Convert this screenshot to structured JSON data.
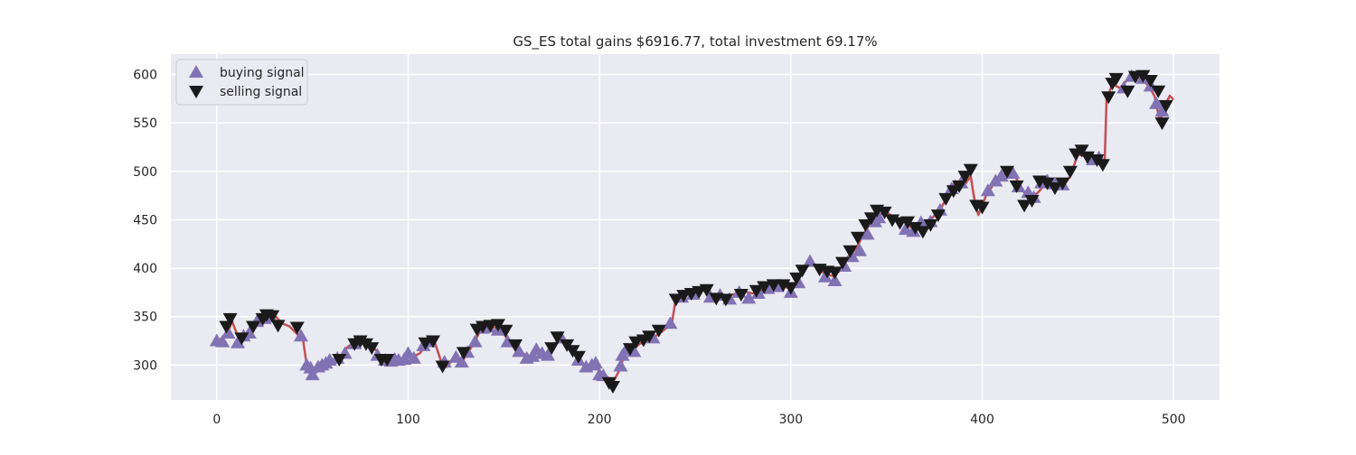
{
  "chart_data": {
    "type": "line",
    "title": "GS_ES total gains $6916.77, total investment 69.17%",
    "xlabel": "",
    "ylabel": "",
    "xlim": [
      -24,
      524
    ],
    "ylim": [
      264,
      621
    ],
    "x_ticks": [
      0,
      100,
      200,
      300,
      400,
      500
    ],
    "y_ticks": [
      300,
      350,
      400,
      450,
      500,
      550,
      600
    ],
    "grid": true,
    "legend_position": "upper-left",
    "legend": {
      "buy_label": "buying signal",
      "sell_label": "selling signal"
    },
    "colors": {
      "background": "#eaeaf2",
      "grid": "#ffffff",
      "line": "#c44e52",
      "buy": "#8172b3",
      "sell": "#1a1a1a"
    },
    "price_keypoints": [
      [
        0,
        325
      ],
      [
        5,
        330
      ],
      [
        8,
        345
      ],
      [
        12,
        325
      ],
      [
        15,
        330
      ],
      [
        18,
        335
      ],
      [
        22,
        345
      ],
      [
        26,
        350
      ],
      [
        30,
        352
      ],
      [
        34,
        343
      ],
      [
        38,
        340
      ],
      [
        42,
        332
      ],
      [
        45,
        327
      ],
      [
        47,
        300
      ],
      [
        52,
        296
      ],
      [
        56,
        300
      ],
      [
        60,
        304
      ],
      [
        65,
        308
      ],
      [
        68,
        318
      ],
      [
        72,
        324
      ],
      [
        78,
        324
      ],
      [
        82,
        318
      ],
      [
        87,
        307
      ],
      [
        92,
        305
      ],
      [
        97,
        306
      ],
      [
        102,
        308
      ],
      [
        106,
        312
      ],
      [
        110,
        322
      ],
      [
        114,
        323
      ],
      [
        117,
        305
      ],
      [
        120,
        298
      ],
      [
        124,
        307
      ],
      [
        128,
        303
      ],
      [
        131,
        312
      ],
      [
        135,
        325
      ],
      [
        138,
        337
      ],
      [
        142,
        341
      ],
      [
        146,
        338
      ],
      [
        150,
        332
      ],
      [
        153,
        324
      ],
      [
        156,
        316
      ],
      [
        160,
        312
      ],
      [
        164,
        308
      ],
      [
        168,
        314
      ],
      [
        172,
        312
      ],
      [
        176,
        320
      ],
      [
        180,
        326
      ],
      [
        183,
        318
      ],
      [
        187,
        312
      ],
      [
        190,
        302
      ],
      [
        194,
        299
      ],
      [
        198,
        301
      ],
      [
        201,
        292
      ],
      [
        204,
        288
      ],
      [
        207,
        282
      ],
      [
        210,
        293
      ],
      [
        213,
        310
      ],
      [
        217,
        315
      ],
      [
        221,
        322
      ],
      [
        226,
        326
      ],
      [
        231,
        332
      ],
      [
        236,
        340
      ],
      [
        238,
        345
      ],
      [
        240,
        370
      ],
      [
        245,
        372
      ],
      [
        250,
        375
      ],
      [
        254,
        378
      ],
      [
        258,
        371
      ],
      [
        262,
        372
      ],
      [
        266,
        371
      ],
      [
        270,
        373
      ],
      [
        275,
        376
      ],
      [
        280,
        374
      ],
      [
        285,
        377
      ],
      [
        290,
        380
      ],
      [
        295,
        383
      ],
      [
        300,
        378
      ],
      [
        303,
        385
      ],
      [
        306,
        396
      ],
      [
        310,
        405
      ],
      [
        314,
        400
      ],
      [
        318,
        394
      ],
      [
        322,
        392
      ],
      [
        326,
        398
      ],
      [
        330,
        412
      ],
      [
        334,
        420
      ],
      [
        338,
        435
      ],
      [
        342,
        448
      ],
      [
        346,
        455
      ],
      [
        350,
        458
      ],
      [
        354,
        452
      ],
      [
        358,
        450
      ],
      [
        362,
        443
      ],
      [
        366,
        440
      ],
      [
        370,
        445
      ],
      [
        374,
        452
      ],
      [
        378,
        460
      ],
      [
        382,
        475
      ],
      [
        386,
        490
      ],
      [
        390,
        484
      ],
      [
        394,
        495
      ],
      [
        396,
        470
      ],
      [
        398,
        455
      ],
      [
        402,
        475
      ],
      [
        406,
        487
      ],
      [
        410,
        494
      ],
      [
        414,
        500
      ],
      [
        418,
        492
      ],
      [
        422,
        478
      ],
      [
        426,
        472
      ],
      [
        430,
        480
      ],
      [
        434,
        490
      ],
      [
        438,
        486
      ],
      [
        442,
        484
      ],
      [
        446,
        495
      ],
      [
        450,
        518
      ],
      [
        454,
        515
      ],
      [
        458,
        512
      ],
      [
        462,
        512
      ],
      [
        464,
        510
      ],
      [
        465,
        575
      ],
      [
        468,
        590
      ],
      [
        472,
        586
      ],
      [
        476,
        595
      ],
      [
        480,
        598
      ],
      [
        484,
        594
      ],
      [
        487,
        588
      ],
      [
        490,
        578
      ],
      [
        493,
        550
      ],
      [
        494,
        560
      ],
      [
        496,
        570
      ],
      [
        498,
        578
      ],
      [
        500,
        574
      ]
    ],
    "buy_signals": [
      [
        0,
        325
      ],
      [
        3,
        324
      ],
      [
        6,
        333
      ],
      [
        11,
        323
      ],
      [
        14,
        330
      ],
      [
        17,
        333
      ],
      [
        21,
        345
      ],
      [
        25,
        348
      ],
      [
        28,
        350
      ],
      [
        44,
        330
      ],
      [
        47,
        300
      ],
      [
        49,
        297
      ],
      [
        50,
        290
      ],
      [
        53,
        298
      ],
      [
        55,
        300
      ],
      [
        57,
        302
      ],
      [
        59,
        305
      ],
      [
        63,
        307
      ],
      [
        67,
        312
      ],
      [
        72,
        322
      ],
      [
        84,
        310
      ],
      [
        88,
        305
      ],
      [
        91,
        304
      ],
      [
        93,
        306
      ],
      [
        95,
        305
      ],
      [
        98,
        306
      ],
      [
        100,
        312
      ],
      [
        103,
        307
      ],
      [
        108,
        320
      ],
      [
        111,
        324
      ],
      [
        119,
        303
      ],
      [
        125,
        308
      ],
      [
        128,
        303
      ],
      [
        131,
        313
      ],
      [
        135,
        324
      ],
      [
        139,
        338
      ],
      [
        142,
        339
      ],
      [
        147,
        336
      ],
      [
        152,
        324
      ],
      [
        158,
        314
      ],
      [
        162,
        307
      ],
      [
        165,
        309
      ],
      [
        167,
        316
      ],
      [
        170,
        312
      ],
      [
        173,
        310
      ],
      [
        180,
        328
      ],
      [
        189,
        305
      ],
      [
        193,
        298
      ],
      [
        196,
        300
      ],
      [
        198,
        302
      ],
      [
        200,
        290
      ],
      [
        202,
        289
      ],
      [
        211,
        299
      ],
      [
        212,
        310
      ],
      [
        214,
        316
      ],
      [
        218,
        314
      ],
      [
        228,
        328
      ],
      [
        237,
        343
      ],
      [
        243,
        370
      ],
      [
        249,
        373
      ],
      [
        258,
        370
      ],
      [
        263,
        372
      ],
      [
        268,
        368
      ],
      [
        273,
        375
      ],
      [
        278,
        369
      ],
      [
        283,
        374
      ],
      [
        288,
        379
      ],
      [
        293,
        381
      ],
      [
        300,
        375
      ],
      [
        304,
        385
      ],
      [
        310,
        407
      ],
      [
        318,
        391
      ],
      [
        323,
        387
      ],
      [
        328,
        402
      ],
      [
        332,
        412
      ],
      [
        336,
        418
      ],
      [
        340,
        435
      ],
      [
        344,
        448
      ],
      [
        346,
        452
      ],
      [
        360,
        440
      ],
      [
        364,
        438
      ],
      [
        368,
        447
      ],
      [
        373,
        448
      ],
      [
        378,
        460
      ],
      [
        384,
        482
      ],
      [
        389,
        488
      ],
      [
        403,
        480
      ],
      [
        407,
        490
      ],
      [
        410,
        495
      ],
      [
        416,
        498
      ],
      [
        419,
        484
      ],
      [
        424,
        478
      ],
      [
        427,
        473
      ],
      [
        431,
        488
      ],
      [
        434,
        490
      ],
      [
        438,
        487
      ],
      [
        442,
        486
      ],
      [
        458,
        512
      ],
      [
        461,
        514
      ],
      [
        474,
        586
      ],
      [
        478,
        598
      ],
      [
        484,
        596
      ],
      [
        488,
        588
      ],
      [
        491,
        570
      ],
      [
        494,
        562
      ]
    ],
    "sell_signals": [
      [
        5,
        340
      ],
      [
        7,
        348
      ],
      [
        13,
        328
      ],
      [
        19,
        340
      ],
      [
        24,
        348
      ],
      [
        26,
        352
      ],
      [
        29,
        351
      ],
      [
        32,
        341
      ],
      [
        42,
        339
      ],
      [
        64,
        306
      ],
      [
        72,
        322
      ],
      [
        75,
        325
      ],
      [
        78,
        322
      ],
      [
        81,
        318
      ],
      [
        86,
        306
      ],
      [
        89,
        306
      ],
      [
        109,
        323
      ],
      [
        113,
        325
      ],
      [
        118,
        299
      ],
      [
        129,
        313
      ],
      [
        136,
        337
      ],
      [
        139,
        340
      ],
      [
        143,
        341
      ],
      [
        147,
        342
      ],
      [
        151,
        336
      ],
      [
        156,
        321
      ],
      [
        175,
        318
      ],
      [
        178,
        329
      ],
      [
        183,
        321
      ],
      [
        186,
        315
      ],
      [
        189,
        309
      ],
      [
        205,
        282
      ],
      [
        207,
        278
      ],
      [
        216,
        317
      ],
      [
        219,
        324
      ],
      [
        223,
        326
      ],
      [
        226,
        330
      ],
      [
        231,
        336
      ],
      [
        240,
        368
      ],
      [
        244,
        372
      ],
      [
        248,
        374
      ],
      [
        252,
        376
      ],
      [
        256,
        378
      ],
      [
        261,
        369
      ],
      [
        266,
        368
      ],
      [
        274,
        373
      ],
      [
        282,
        377
      ],
      [
        286,
        381
      ],
      [
        291,
        383
      ],
      [
        296,
        383
      ],
      [
        300,
        380
      ],
      [
        303,
        390
      ],
      [
        306,
        398
      ],
      [
        315,
        399
      ],
      [
        319,
        397
      ],
      [
        323,
        396
      ],
      [
        327,
        406
      ],
      [
        331,
        418
      ],
      [
        335,
        432
      ],
      [
        339,
        445
      ],
      [
        342,
        452
      ],
      [
        345,
        460
      ],
      [
        349,
        458
      ],
      [
        353,
        450
      ],
      [
        357,
        447
      ],
      [
        361,
        448
      ],
      [
        365,
        442
      ],
      [
        369,
        438
      ],
      [
        373,
        445
      ],
      [
        377,
        455
      ],
      [
        381,
        472
      ],
      [
        385,
        480
      ],
      [
        388,
        485
      ],
      [
        391,
        495
      ],
      [
        394,
        502
      ],
      [
        397,
        465
      ],
      [
        400,
        463
      ],
      [
        413,
        500
      ],
      [
        418,
        485
      ],
      [
        422,
        465
      ],
      [
        426,
        470
      ],
      [
        430,
        490
      ],
      [
        434,
        488
      ],
      [
        438,
        483
      ],
      [
        442,
        488
      ],
      [
        446,
        500
      ],
      [
        449,
        518
      ],
      [
        452,
        522
      ],
      [
        455,
        515
      ],
      [
        460,
        512
      ],
      [
        463,
        507
      ],
      [
        466,
        577
      ],
      [
        468,
        591
      ],
      [
        470,
        596
      ],
      [
        476,
        583
      ],
      [
        480,
        598
      ],
      [
        484,
        599
      ],
      [
        488,
        594
      ],
      [
        492,
        583
      ],
      [
        494,
        550
      ],
      [
        496,
        568
      ]
    ]
  }
}
